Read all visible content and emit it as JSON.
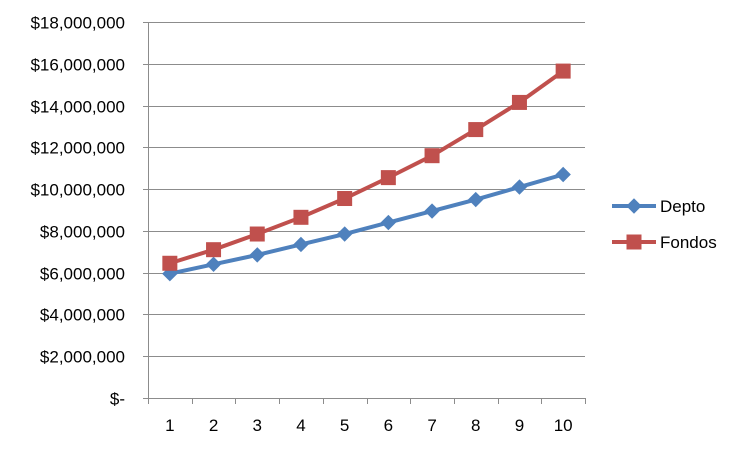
{
  "chart_data": {
    "type": "line",
    "title": "",
    "xlabel": "",
    "ylabel": "",
    "x": [
      "1",
      "2",
      "3",
      "4",
      "5",
      "6",
      "7",
      "8",
      "9",
      "10"
    ],
    "ylim": [
      0,
      18000000
    ],
    "y_ticks": [
      0,
      2000000,
      4000000,
      6000000,
      8000000,
      10000000,
      12000000,
      14000000,
      16000000,
      18000000
    ],
    "y_tick_labels": [
      "$-",
      "$2,000,000",
      "$4,000,000",
      "$6,000,000",
      "$8,000,000",
      "$10,000,000",
      "$12,000,000",
      "$14,000,000",
      "$16,000,000",
      "$18,000,000"
    ],
    "grid": "horizontal",
    "legend": "right",
    "series": [
      {
        "name": "Depto",
        "color": "#4f81bd",
        "marker": "diamond",
        "values": [
          5950000,
          6400000,
          6850000,
          7350000,
          7850000,
          8400000,
          8950000,
          9500000,
          10100000,
          10700000
        ]
      },
      {
        "name": "Fondos",
        "color": "#c0504d",
        "marker": "square",
        "values": [
          6450000,
          7100000,
          7850000,
          8650000,
          9550000,
          10550000,
          11600000,
          12850000,
          14150000,
          15650000
        ]
      }
    ]
  }
}
